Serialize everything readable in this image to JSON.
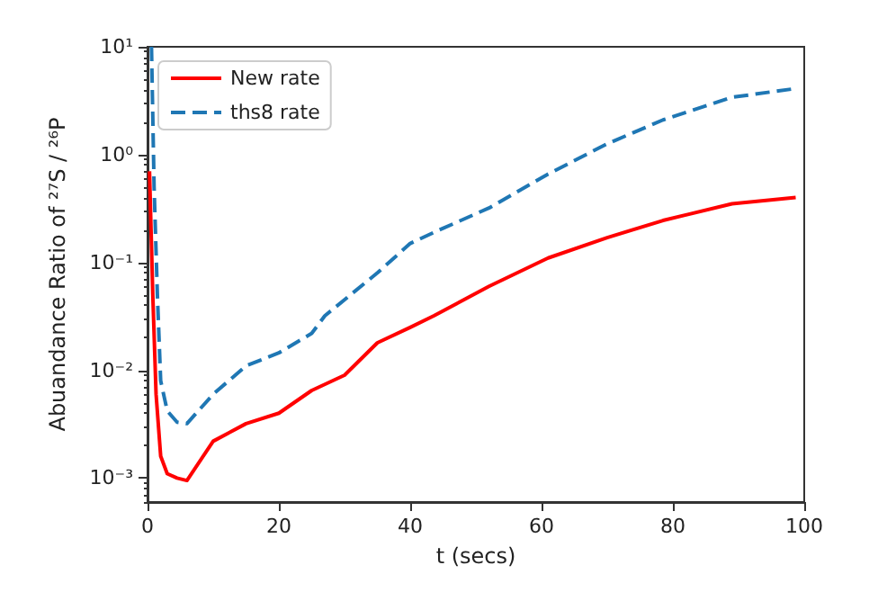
{
  "chart_data": {
    "type": "line",
    "xlabel": "t (secs)",
    "ylabel": "Abuandance Ratio of ²⁷S / ²⁶P",
    "xlim": [
      0,
      100
    ],
    "xticks": [
      0,
      20,
      40,
      60,
      80,
      100
    ],
    "ylim": [
      0.0006,
      10
    ],
    "yticks": [
      {
        "value": 0.001,
        "label": "10⁻³"
      },
      {
        "value": 0.01,
        "label": "10⁻²"
      },
      {
        "value": 0.1,
        "label": "10⁻¹"
      },
      {
        "value": 1,
        "label": "10⁰"
      },
      {
        "value": 10,
        "label": "10¹"
      }
    ],
    "log": "y",
    "grid": false,
    "legend": "top left",
    "marker": "none",
    "series": [
      {
        "name": "New rate",
        "color": "#ff0000",
        "line_style": "solid",
        "x": [
          0.3,
          0.8,
          1.3,
          2,
          3,
          4.5,
          6,
          10,
          15,
          20,
          25,
          30,
          35,
          40,
          43.6,
          52,
          61,
          70,
          78.5,
          89,
          98.7
        ],
        "values": [
          0.7,
          0.05,
          0.006,
          0.0016,
          0.0011,
          0.001,
          0.00095,
          0.0022,
          0.0032,
          0.004,
          0.0065,
          0.009,
          0.018,
          0.025,
          0.032,
          0.06,
          0.11,
          0.17,
          0.245,
          0.35,
          0.4
        ]
      },
      {
        "name": "ths8 rate",
        "color": "#1f77b4",
        "line_style": "dashed",
        "x": [
          0.6,
          1,
          1.5,
          2,
          3,
          4.5,
          6,
          10,
          15,
          20,
          25,
          27,
          35,
          40,
          43.6,
          52,
          61,
          70,
          78.5,
          89,
          98.7
        ],
        "values": [
          10,
          0.5,
          0.05,
          0.008,
          0.0042,
          0.0033,
          0.0032,
          0.006,
          0.011,
          0.0145,
          0.022,
          0.032,
          0.08,
          0.15,
          0.19,
          0.32,
          0.66,
          1.26,
          2.1,
          3.4,
          4.1
        ]
      }
    ]
  }
}
